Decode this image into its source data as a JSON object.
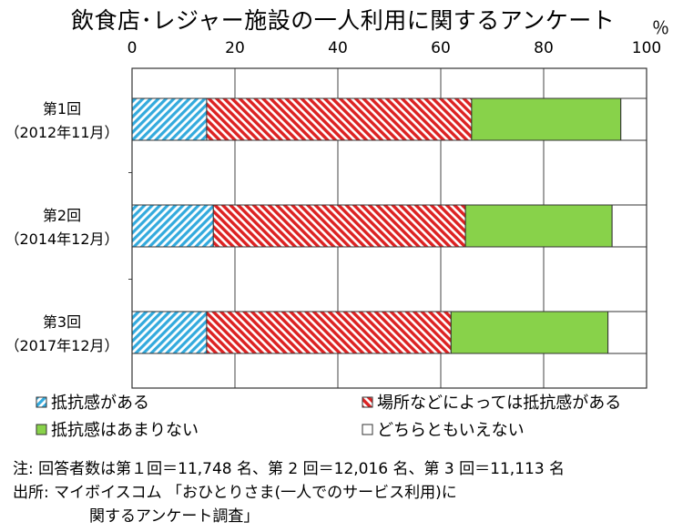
{
  "title": "飲食店･レジャー施設の一人利用に関するアンケート",
  "unit_label": "％",
  "colors": {
    "cyan": "#33aadd",
    "red": "#dd2222",
    "green": "#88d24a",
    "white": "#ffffff",
    "frame": "#333333",
    "grid": "#444444"
  },
  "chart_data": {
    "type": "bar",
    "orientation": "horizontal",
    "stacked": true,
    "xlim": [
      0,
      100
    ],
    "xticks": [
      0,
      20,
      40,
      60,
      80,
      100
    ],
    "categories": [
      [
        "第1回",
        "（2012年11月）"
      ],
      [
        "第2回",
        "（2014年12月）"
      ],
      [
        "第3回",
        "（2017年12月）"
      ]
    ],
    "series": [
      {
        "name": "抵抗感がある",
        "color": "#33aadd",
        "pattern": "hatch-cyan",
        "values": [
          14.5,
          15.8,
          14.5
        ]
      },
      {
        "name": "場所などによっては抵抗感がある",
        "color": "#dd2222",
        "pattern": "hatch-red",
        "values": [
          51.5,
          49.0,
          47.5
        ]
      },
      {
        "name": "抵抗感はあまりない",
        "color": "#88d24a",
        "pattern": "solid-green",
        "values": [
          29.0,
          28.5,
          30.5
        ]
      },
      {
        "name": "どちらともいえない",
        "color": "#ffffff",
        "pattern": "solid-white",
        "values": [
          5.0,
          6.7,
          7.5
        ]
      }
    ],
    "grid": true,
    "legend_position": "bottom"
  },
  "notes": {
    "line1": "注: 回答者数は第１回＝11,748 名、第 2 回＝12,016 名、第 3 回＝11,113 名",
    "line2": "出所: マイボイスコム 「おひとりさま(一人でのサービス利用)に",
    "line3": "関するアンケート調査」"
  }
}
